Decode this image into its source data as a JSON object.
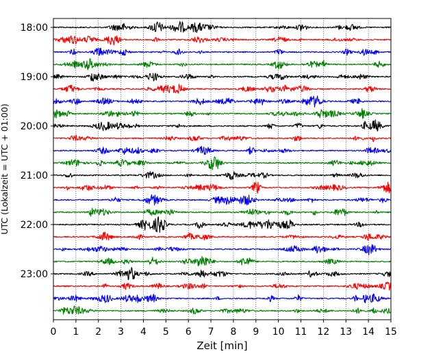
{
  "chart_data": {
    "type": "line",
    "title": "",
    "xlabel": "Zeit  [min]",
    "ylabel": "UTC (Lokalzeit = UTC + 01:00)",
    "xlim": [
      0,
      15
    ],
    "x_ticks": [
      0,
      1,
      2,
      3,
      4,
      5,
      6,
      7,
      8,
      9,
      10,
      11,
      12,
      13,
      14,
      15
    ],
    "x_tick_labels": [
      "0",
      "1",
      "2",
      "3",
      "4",
      "5",
      "6",
      "7",
      "8",
      "9",
      "10",
      "11",
      "12",
      "13",
      "14",
      "15"
    ],
    "y_tick_labels": [
      "18:00",
      "19:00",
      "20:00",
      "21:00",
      "22:00",
      "23:00"
    ],
    "traces_per_hour": 4,
    "minutes_per_trace": 15,
    "grid": "vertical dotted",
    "series": [
      {
        "start": "18:00",
        "color": "#000000"
      },
      {
        "start": "18:15",
        "color": "#ff0000"
      },
      {
        "start": "18:30",
        "color": "#0000ff"
      },
      {
        "start": "18:45",
        "color": "#007f00"
      },
      {
        "start": "19:00",
        "color": "#000000"
      },
      {
        "start": "19:15",
        "color": "#ff0000"
      },
      {
        "start": "19:30",
        "color": "#0000ff"
      },
      {
        "start": "19:45",
        "color": "#007f00"
      },
      {
        "start": "20:00",
        "color": "#000000"
      },
      {
        "start": "20:15",
        "color": "#ff0000"
      },
      {
        "start": "20:30",
        "color": "#0000ff"
      },
      {
        "start": "20:45",
        "color": "#007f00"
      },
      {
        "start": "21:00",
        "color": "#000000"
      },
      {
        "start": "21:15",
        "color": "#ff0000"
      },
      {
        "start": "21:30",
        "color": "#0000ff"
      },
      {
        "start": "21:45",
        "color": "#007f00"
      },
      {
        "start": "22:00",
        "color": "#000000"
      },
      {
        "start": "22:15",
        "color": "#ff0000"
      },
      {
        "start": "22:30",
        "color": "#0000ff"
      },
      {
        "start": "22:45",
        "color": "#007f00"
      },
      {
        "start": "23:00",
        "color": "#000000"
      },
      {
        "start": "23:15",
        "color": "#ff0000"
      },
      {
        "start": "23:30",
        "color": "#0000ff"
      },
      {
        "start": "23:45",
        "color": "#007f00"
      }
    ]
  }
}
